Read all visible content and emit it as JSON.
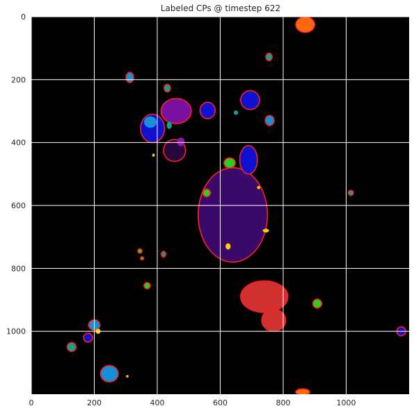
{
  "chart_data": {
    "type": "heatmap",
    "title": "Labeled CPs @ timestep 622",
    "xlabel": "",
    "ylabel": "",
    "xlim": [
      0,
      1200
    ],
    "ylim": [
      1200,
      0
    ],
    "xticks": [
      0,
      200,
      400,
      600,
      800,
      1000
    ],
    "yticks": [
      0,
      200,
      400,
      600,
      800,
      1000
    ],
    "grid": true,
    "colors": {
      "background": "#000000",
      "boundary": "#ff2020",
      "grid": "#ffffff"
    },
    "regions": [
      {
        "label": "large-purple-cp",
        "color": "#3a0a6a",
        "cx": 640,
        "cy": 630,
        "rx": 110,
        "ry": 150,
        "boundary": true
      },
      {
        "label": "purple-cp",
        "color": "#7a10a0",
        "cx": 460,
        "cy": 300,
        "rx": 48,
        "ry": 40,
        "boundary": true
      },
      {
        "label": "dark-purple-cp",
        "color": "#26083a",
        "cx": 455,
        "cy": 425,
        "rx": 35,
        "ry": 35,
        "boundary": true
      },
      {
        "label": "blue-cp-left",
        "color": "#1010d0",
        "cx": 385,
        "cy": 355,
        "rx": 38,
        "ry": 45,
        "boundary": true
      },
      {
        "label": "blue-cp-mid",
        "color": "#1010d0",
        "cx": 560,
        "cy": 298,
        "rx": 24,
        "ry": 26,
        "boundary": true
      },
      {
        "label": "blue-cp-upper-right",
        "color": "#1010d0",
        "cx": 695,
        "cy": 265,
        "rx": 30,
        "ry": 30,
        "boundary": true
      },
      {
        "label": "blue-cp-center",
        "color": "#1010d0",
        "cx": 690,
        "cy": 455,
        "rx": 28,
        "ry": 45,
        "boundary": true
      },
      {
        "label": "blue-cp-lower-left",
        "color": "#1010d0",
        "cx": 180,
        "cy": 1020,
        "rx": 14,
        "ry": 14,
        "boundary": true
      },
      {
        "label": "blue-cp-right-edge",
        "color": "#1010d0",
        "cx": 1175,
        "cy": 1000,
        "rx": 14,
        "ry": 14,
        "boundary": true
      },
      {
        "label": "cyan-cp-lower-left",
        "color": "#1590d8",
        "cx": 248,
        "cy": 1135,
        "rx": 28,
        "ry": 26,
        "boundary": true
      },
      {
        "label": "cyan-cp-left",
        "color": "#1590d8",
        "cx": 200,
        "cy": 980,
        "rx": 18,
        "ry": 16,
        "boundary": true
      },
      {
        "label": "cyan-cp-top",
        "color": "#1590d8",
        "cx": 313,
        "cy": 193,
        "rx": 12,
        "ry": 16,
        "boundary": true
      },
      {
        "label": "cyan-cp-cluster",
        "color": "#1590d8",
        "cx": 378,
        "cy": 335,
        "rx": 20,
        "ry": 18,
        "boundary": false
      },
      {
        "label": "cyan-cp-right",
        "color": "#1590d8",
        "cx": 757,
        "cy": 330,
        "rx": 14,
        "ry": 16,
        "boundary": true
      },
      {
        "label": "teal-cp-1",
        "color": "#10a090",
        "cx": 432,
        "cy": 227,
        "rx": 10,
        "ry": 12,
        "boundary": true
      },
      {
        "label": "teal-cp-2",
        "color": "#10a090",
        "cx": 755,
        "cy": 128,
        "rx": 10,
        "ry": 12,
        "boundary": true
      },
      {
        "label": "teal-cp-3",
        "color": "#10a090",
        "cx": 128,
        "cy": 1050,
        "rx": 14,
        "ry": 14,
        "boundary": true
      },
      {
        "label": "teal-cp-4",
        "color": "#10a090",
        "cx": 1015,
        "cy": 560,
        "rx": 8,
        "ry": 8,
        "boundary": true
      },
      {
        "label": "teal-cp-5",
        "color": "#10a090",
        "cx": 420,
        "cy": 755,
        "rx": 7,
        "ry": 9,
        "boundary": true
      },
      {
        "label": "teal-cp-6",
        "color": "#10a090",
        "cx": 650,
        "cy": 305,
        "rx": 7,
        "ry": 7,
        "boundary": false
      },
      {
        "label": "teal-cp-7",
        "color": "#10a090",
        "cx": 438,
        "cy": 345,
        "rx": 8,
        "ry": 12,
        "boundary": false
      },
      {
        "label": "green-cp-1",
        "color": "#28d020",
        "cx": 630,
        "cy": 465,
        "rx": 18,
        "ry": 16,
        "boundary": true
      },
      {
        "label": "green-cp-2",
        "color": "#28d020",
        "cx": 557,
        "cy": 560,
        "rx": 12,
        "ry": 12,
        "boundary": true
      },
      {
        "label": "green-cp-3",
        "color": "#28d020",
        "cx": 908,
        "cy": 912,
        "rx": 14,
        "ry": 14,
        "boundary": true
      },
      {
        "label": "green-cp-4",
        "color": "#28d020",
        "cx": 368,
        "cy": 855,
        "rx": 10,
        "ry": 10,
        "boundary": true
      },
      {
        "label": "green-cp-5",
        "color": "#28d020",
        "cx": 345,
        "cy": 745,
        "rx": 7,
        "ry": 7,
        "boundary": true
      },
      {
        "label": "green-cp-6",
        "color": "#28d020",
        "cx": 352,
        "cy": 768,
        "rx": 5,
        "ry": 5,
        "boundary": true
      },
      {
        "label": "orange-cp-top",
        "color": "#ff6a10",
        "cx": 870,
        "cy": 25,
        "rx": 30,
        "ry": 25,
        "boundary": true
      },
      {
        "label": "orange-cp-bottom",
        "color": "#ff6a10",
        "cx": 862,
        "cy": 1193,
        "rx": 22,
        "ry": 10,
        "boundary": true
      },
      {
        "label": "yellow-cp-1",
        "color": "#ffd000",
        "cx": 625,
        "cy": 730,
        "rx": 8,
        "ry": 10,
        "boundary": false
      },
      {
        "label": "yellow-cp-2",
        "color": "#ffd000",
        "cx": 745,
        "cy": 680,
        "rx": 10,
        "ry": 6,
        "boundary": false
      },
      {
        "label": "yellow-cp-3",
        "color": "#ffd000",
        "cx": 212,
        "cy": 1000,
        "rx": 8,
        "ry": 8,
        "boundary": false
      },
      {
        "label": "yellow-cp-4",
        "color": "#ffd000",
        "cx": 722,
        "cy": 543,
        "rx": 5,
        "ry": 5,
        "boundary": false
      },
      {
        "label": "yellow-cp-5",
        "color": "#ffd000",
        "cx": 388,
        "cy": 440,
        "rx": 4,
        "ry": 5,
        "boundary": false
      },
      {
        "label": "yellow-cp-6",
        "color": "#ffd000",
        "cx": 305,
        "cy": 1143,
        "rx": 4,
        "ry": 4,
        "boundary": false
      },
      {
        "label": "magenta-cp",
        "color": "#9018b0",
        "cx": 475,
        "cy": 398,
        "rx": 12,
        "ry": 14,
        "boundary": false
      },
      {
        "label": "light-red-cp-upper",
        "color": "#d03030",
        "cx": 740,
        "cy": 890,
        "rx": 75,
        "ry": 50,
        "boundary": true
      },
      {
        "label": "light-red-cp-lower",
        "color": "#d03030",
        "cx": 770,
        "cy": 965,
        "rx": 38,
        "ry": 35,
        "boundary": true
      }
    ]
  }
}
